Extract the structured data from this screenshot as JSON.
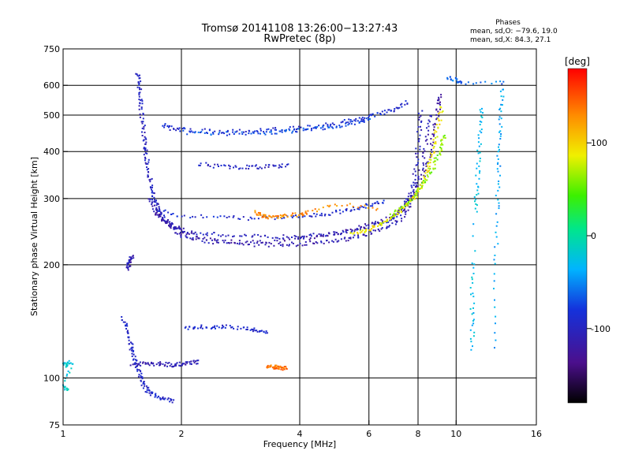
{
  "chart_data": {
    "type": "scatter",
    "title": "Tromsø 20141108 13:26:00−13:27:43",
    "subtitle": "RwPretec (8p)",
    "stats": {
      "heading": "Phases",
      "line_o": "mean, sd,O: −79.6, 19.0",
      "line_x": "mean, sd,X:  84.3, 27.1"
    },
    "xlabel": "Frequency [MHz]",
    "ylabel": "Stationary phase Virtual Height [km]",
    "xscale": "log",
    "yscale": "log",
    "xlim": [
      1,
      16
    ],
    "ylim": [
      75,
      750
    ],
    "xticks": [
      1,
      2,
      4,
      6,
      8,
      10,
      16
    ],
    "yticks": [
      75,
      100,
      200,
      300,
      400,
      500,
      600,
      750
    ],
    "xgrid": [
      2,
      4,
      6,
      8,
      10
    ],
    "ygrid": [
      100,
      200,
      300,
      400,
      500,
      600
    ],
    "grid": true,
    "colorbar": {
      "label": "[deg]",
      "range": [
        -180,
        180
      ],
      "ticks": [
        100,
        0,
        -100
      ]
    },
    "traces": [
      {
        "phase": -100,
        "points": [
          [
            1.55,
            650
          ],
          [
            1.56,
            610
          ],
          [
            1.57,
            560
          ],
          [
            1.58,
            520
          ],
          [
            1.6,
            470
          ],
          [
            1.61,
            430
          ],
          [
            1.62,
            400
          ],
          [
            1.64,
            370
          ],
          [
            1.66,
            340
          ],
          [
            1.68,
            315
          ],
          [
            1.71,
            295
          ],
          [
            1.75,
            278
          ],
          [
            1.8,
            265
          ],
          [
            1.9,
            255
          ],
          [
            2.0,
            248
          ],
          [
            2.2,
            243
          ],
          [
            2.5,
            240
          ],
          [
            3.0,
            238
          ],
          [
            3.5,
            237
          ],
          [
            4.0,
            238
          ],
          [
            4.5,
            240
          ],
          [
            5.0,
            243
          ],
          [
            5.5,
            247
          ],
          [
            6.0,
            252
          ],
          [
            6.5,
            258
          ],
          [
            7.0,
            268
          ],
          [
            7.3,
            282
          ],
          [
            7.6,
            300
          ],
          [
            7.8,
            330
          ],
          [
            7.95,
            380
          ],
          [
            8.05,
            440
          ],
          [
            8.12,
            510
          ]
        ]
      },
      {
        "phase": -110,
        "points": [
          [
            1.66,
            300
          ],
          [
            1.72,
            278
          ],
          [
            1.8,
            262
          ],
          [
            1.9,
            250
          ],
          [
            2.0,
            240
          ],
          [
            2.2,
            233
          ],
          [
            2.5,
            229
          ],
          [
            3.0,
            226
          ],
          [
            3.5,
            226
          ],
          [
            4.0,
            227
          ],
          [
            4.5,
            229
          ],
          [
            5.0,
            232
          ],
          [
            5.5,
            236
          ],
          [
            6.0,
            242
          ],
          [
            6.6,
            250
          ],
          [
            7.2,
            264
          ],
          [
            7.6,
            285
          ],
          [
            7.95,
            320
          ],
          [
            8.2,
            370
          ],
          [
            8.4,
            430
          ],
          [
            8.55,
            500
          ]
        ]
      },
      {
        "phase": -120,
        "points": [
          [
            1.7,
            280
          ],
          [
            1.8,
            262
          ],
          [
            2.0,
            245
          ],
          [
            2.3,
            235
          ],
          [
            2.7,
            230
          ],
          [
            3.2,
            229
          ],
          [
            3.8,
            232
          ],
          [
            4.5,
            238
          ],
          [
            5.2,
            245
          ],
          [
            6.0,
            255
          ],
          [
            6.8,
            268
          ],
          [
            7.4,
            285
          ],
          [
            7.9,
            310
          ],
          [
            8.3,
            350
          ],
          [
            8.6,
            400
          ],
          [
            8.8,
            460
          ],
          [
            9.0,
            520
          ],
          [
            9.1,
            560
          ]
        ]
      },
      {
        "phase": -90,
        "points": [
          [
            1.75,
            280
          ],
          [
            2.0,
            270
          ],
          [
            2.5,
            267
          ],
          [
            3.0,
            266
          ],
          [
            3.5,
            266
          ],
          [
            4.0,
            268
          ],
          [
            4.5,
            271
          ],
          [
            5.0,
            276
          ],
          [
            5.5,
            282
          ],
          [
            6.0,
            288
          ],
          [
            6.5,
            295
          ]
        ]
      },
      {
        "phase": 90,
        "points": [
          [
            5.4,
            242
          ],
          [
            5.8,
            246
          ],
          [
            6.2,
            252
          ],
          [
            6.6,
            260
          ],
          [
            7.0,
            270
          ],
          [
            7.4,
            285
          ],
          [
            7.8,
            300
          ],
          [
            8.1,
            320
          ],
          [
            8.4,
            350
          ],
          [
            8.6,
            380
          ],
          [
            8.8,
            420
          ],
          [
            9.0,
            470
          ],
          [
            9.2,
            520
          ]
        ]
      },
      {
        "phase": 60,
        "points": [
          [
            6.8,
            270
          ],
          [
            7.3,
            285
          ],
          [
            7.8,
            300
          ],
          [
            8.2,
            325
          ],
          [
            8.6,
            350
          ],
          [
            8.9,
            380
          ],
          [
            9.2,
            410
          ],
          [
            9.3,
            440
          ]
        ]
      },
      {
        "phase": 130,
        "points": [
          [
            3.1,
            275
          ],
          [
            3.2,
            270
          ],
          [
            3.3,
            268
          ],
          [
            3.5,
            268
          ],
          [
            3.7,
            270
          ],
          [
            4.0,
            272
          ],
          [
            4.2,
            275
          ],
          [
            5.0,
            290
          ],
          [
            6.3,
            282
          ]
        ]
      },
      {
        "phase": -90,
        "points": [
          [
            1.8,
            470
          ],
          [
            1.9,
            460
          ],
          [
            2.1,
            455
          ],
          [
            2.4,
            453
          ],
          [
            2.8,
            452
          ],
          [
            3.2,
            455
          ],
          [
            3.6,
            458
          ],
          [
            4.0,
            462
          ],
          [
            4.5,
            468
          ],
          [
            5.0,
            475
          ],
          [
            5.5,
            485
          ],
          [
            6.0,
            495
          ],
          [
            6.5,
            505
          ],
          [
            7.0,
            520
          ],
          [
            7.5,
            540
          ]
        ]
      },
      {
        "phase": -70,
        "points": [
          [
            2.0,
            450
          ],
          [
            2.4,
            447
          ],
          [
            2.8,
            446
          ],
          [
            3.2,
            448
          ],
          [
            3.6,
            452
          ],
          [
            4.0,
            456
          ],
          [
            4.5,
            462
          ],
          [
            5.0,
            468
          ],
          [
            5.5,
            476
          ],
          [
            6.0,
            485
          ]
        ]
      },
      {
        "phase": -100,
        "points": [
          [
            2.2,
            370
          ],
          [
            2.5,
            366
          ],
          [
            2.8,
            364
          ],
          [
            3.1,
            364
          ],
          [
            3.4,
            365
          ],
          [
            3.7,
            366
          ]
        ]
      },
      {
        "phase": -110,
        "points": [
          [
            1.5,
            108
          ],
          [
            1.6,
            109
          ],
          [
            1.7,
            109
          ],
          [
            1.8,
            109
          ],
          [
            1.9,
            108
          ],
          [
            2.0,
            109
          ],
          [
            2.1,
            110
          ],
          [
            2.2,
            110
          ]
        ]
      },
      {
        "phase": -95,
        "points": [
          [
            1.42,
            145
          ],
          [
            1.45,
            135
          ],
          [
            1.48,
            125
          ],
          [
            1.5,
            118
          ],
          [
            1.52,
            112
          ],
          [
            1.55,
            105
          ],
          [
            1.58,
            100
          ],
          [
            1.6,
            96
          ],
          [
            1.65,
            92
          ],
          [
            1.7,
            90
          ],
          [
            1.8,
            88
          ],
          [
            1.9,
            87
          ]
        ]
      },
      {
        "phase": -110,
        "points": [
          [
            1.45,
            195
          ],
          [
            1.47,
            200
          ],
          [
            1.48,
            205
          ],
          [
            1.5,
            210
          ]
        ]
      },
      {
        "phase": -90,
        "points": [
          [
            2.05,
            135
          ],
          [
            2.2,
            137
          ],
          [
            2.4,
            136
          ],
          [
            2.6,
            137
          ],
          [
            2.9,
            135
          ],
          [
            3.1,
            134
          ],
          [
            3.3,
            132
          ]
        ]
      },
      {
        "phase": 140,
        "points": [
          [
            3.3,
            108
          ],
          [
            3.4,
            107
          ],
          [
            3.5,
            107
          ],
          [
            3.6,
            106
          ],
          [
            3.7,
            106
          ]
        ]
      },
      {
        "phase": -20,
        "points": [
          [
            1.0,
            110
          ],
          [
            1.02,
            108
          ],
          [
            1.05,
            110
          ],
          [
            1.0,
            95
          ],
          [
            1.03,
            93
          ]
        ]
      },
      {
        "phase": -30,
        "points": [
          [
            11.0,
            200
          ],
          [
            11.0,
            150
          ],
          [
            11.0,
            120
          ],
          [
            11.2,
            280
          ],
          [
            11.3,
            320
          ],
          [
            11.4,
            380
          ],
          [
            11.5,
            450
          ],
          [
            11.6,
            520
          ]
        ]
      },
      {
        "phase": -40,
        "points": [
          [
            12.5,
            120
          ],
          [
            12.6,
            200
          ],
          [
            12.7,
            280
          ],
          [
            12.8,
            350
          ],
          [
            12.9,
            420
          ],
          [
            13.0,
            500
          ],
          [
            13.1,
            580
          ]
        ]
      },
      {
        "phase": -60,
        "points": [
          [
            9.5,
            630
          ],
          [
            10.0,
            620
          ],
          [
            10.3,
            610
          ],
          [
            13.2,
            610
          ]
        ]
      }
    ]
  }
}
